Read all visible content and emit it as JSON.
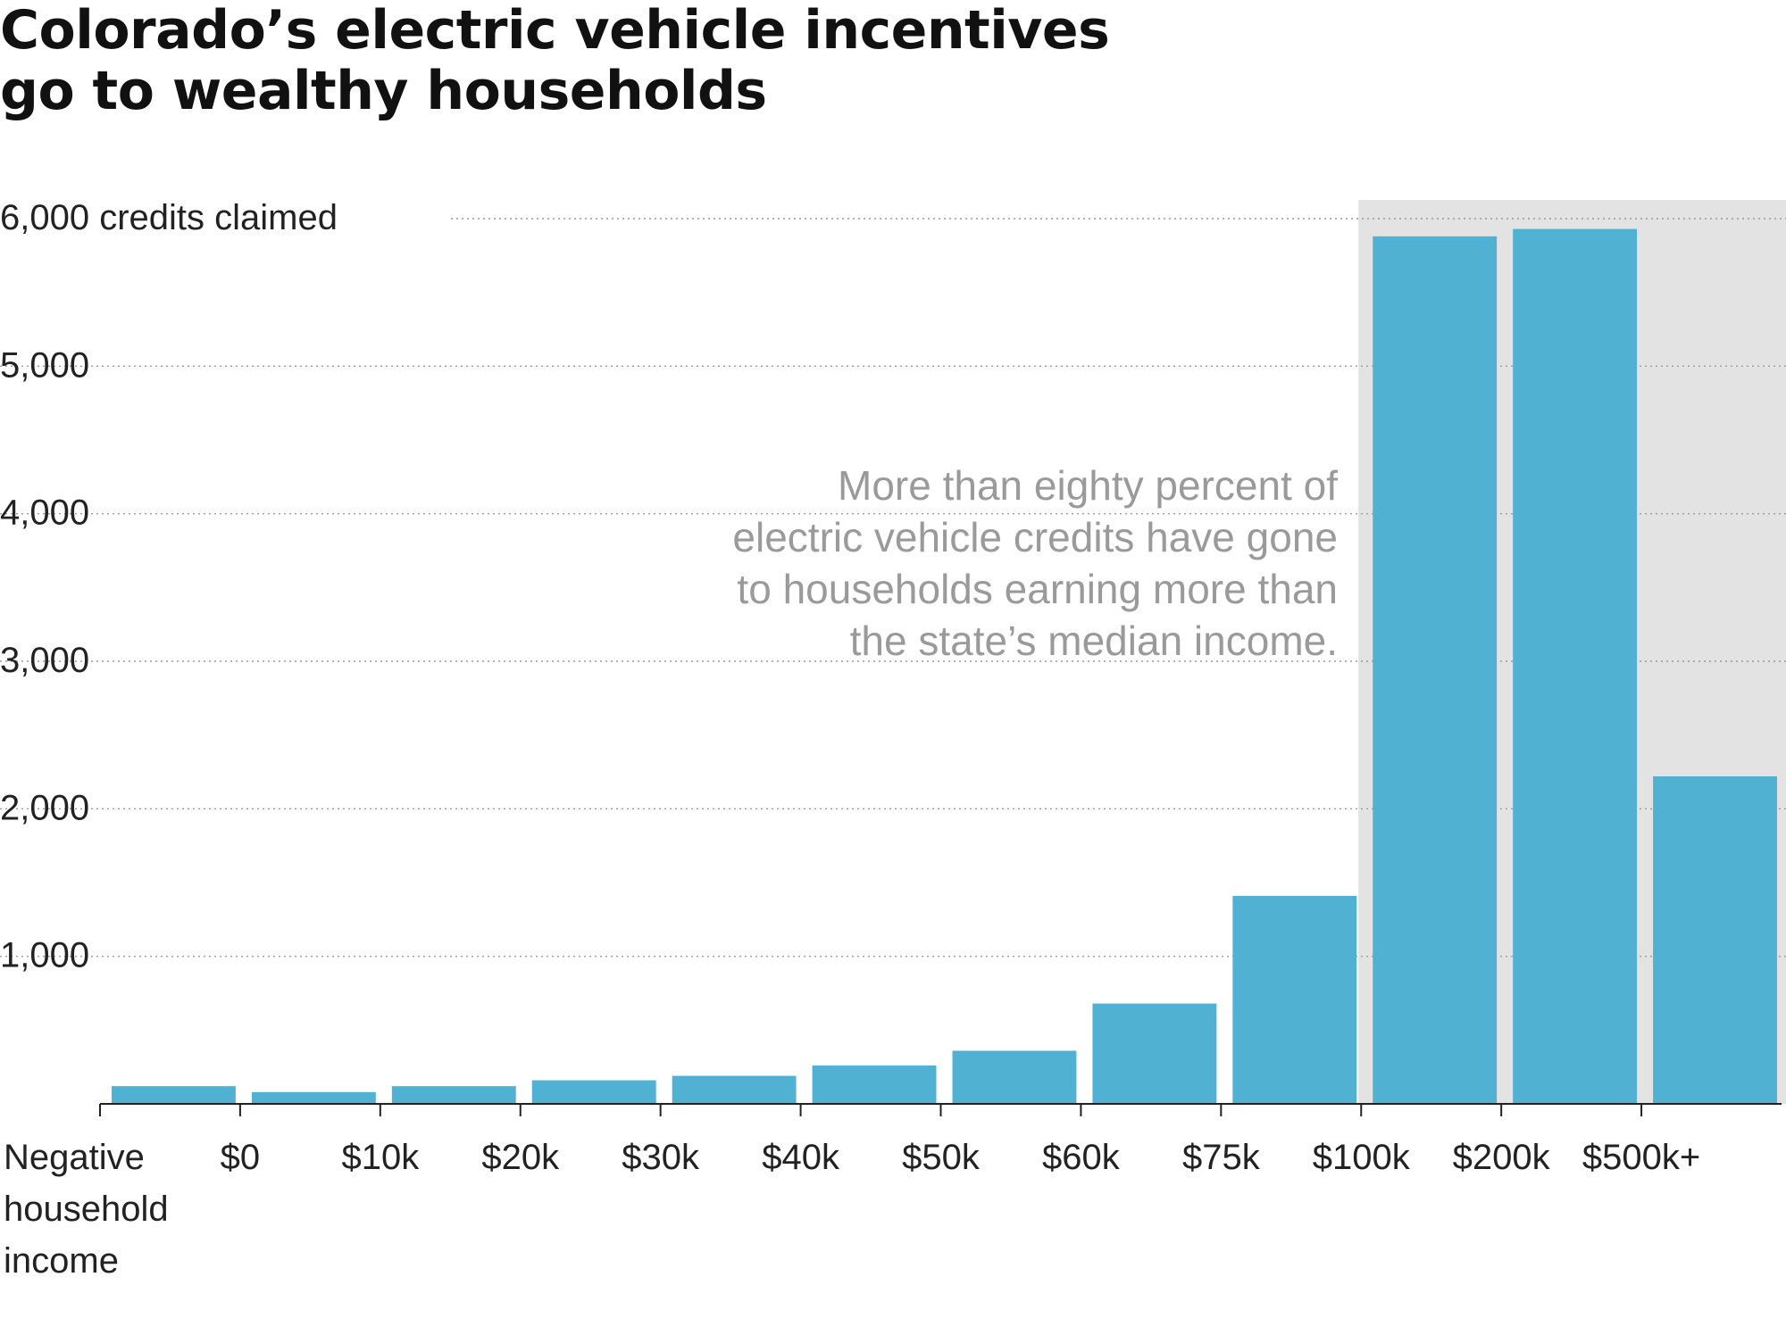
{
  "chart_data": {
    "type": "bar",
    "title": [
      "Colorado’s electric vehicle incentives",
      "go to wealthy households"
    ],
    "y_unit_label": "credits claimed",
    "ylim": [
      0,
      6000
    ],
    "y_ticks": [
      1000,
      2000,
      3000,
      4000,
      5000,
      6000
    ],
    "y_tick_labels": [
      "1,000",
      "2,000",
      "3,000",
      "4,000",
      "5,000",
      "6,000"
    ],
    "x_tick_labels": [
      "Negative",
      "$0",
      "$10k",
      "$20k",
      "$30k",
      "$40k",
      "$50k",
      "$60k",
      "$75k",
      "$100k",
      "$200k",
      "$500k+"
    ],
    "x_first_label_extra": [
      "household",
      "income"
    ],
    "values": [
      120,
      80,
      120,
      160,
      190,
      260,
      360,
      680,
      1410,
      5880,
      5930,
      2220
    ],
    "highlight_range": [
      "$100k",
      "$500k+"
    ],
    "highlight_color": "#e3e3e3",
    "bar_color": "#50b1d3",
    "grid": true,
    "annotation": [
      "More than eighty percent of",
      "electric vehicle credits have gone",
      "to households earning more than",
      "the state’s median income."
    ]
  }
}
